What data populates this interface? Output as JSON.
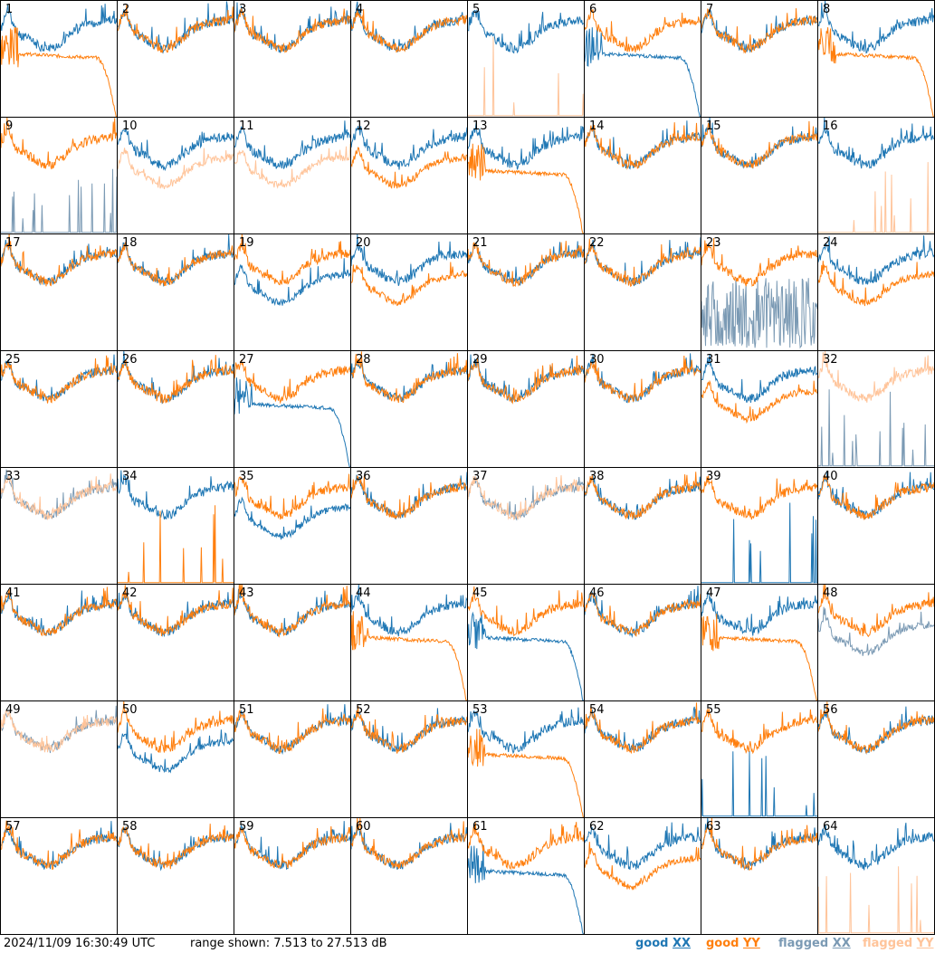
{
  "chart_data": {
    "type": "line",
    "layout": "8x8 grid of small-multiple panels",
    "colors": {
      "good_xx": "#1f77b4",
      "good_yy": "#ff7f0e",
      "flagged_xx": "#7b9ab4",
      "flagged_yy": "#ffc49a"
    },
    "panels": [
      {
        "label": "1",
        "xx": {
          "status": "good",
          "shape": "normal"
        },
        "yy": {
          "status": "good",
          "shape": "dropoff"
        }
      },
      {
        "label": "2",
        "xx": {
          "status": "good",
          "shape": "normal"
        },
        "yy": {
          "status": "good",
          "shape": "normal"
        }
      },
      {
        "label": "3",
        "xx": {
          "status": "good",
          "shape": "normal"
        },
        "yy": {
          "status": "good",
          "shape": "normal"
        }
      },
      {
        "label": "4",
        "xx": {
          "status": "good",
          "shape": "normal"
        },
        "yy": {
          "status": "good",
          "shape": "normal"
        }
      },
      {
        "label": "5",
        "xx": {
          "status": "good",
          "shape": "normal"
        },
        "yy": {
          "status": "flagged",
          "shape": "spikes"
        }
      },
      {
        "label": "6",
        "xx": {
          "status": "good",
          "shape": "dropoff"
        },
        "yy": {
          "status": "good",
          "shape": "normal"
        }
      },
      {
        "label": "7",
        "xx": {
          "status": "good",
          "shape": "normal"
        },
        "yy": {
          "status": "good",
          "shape": "normal"
        }
      },
      {
        "label": "8",
        "xx": {
          "status": "good",
          "shape": "normal"
        },
        "yy": {
          "status": "good",
          "shape": "dropoff"
        }
      },
      {
        "label": "9",
        "xx": {
          "status": "flagged",
          "shape": "spikes"
        },
        "yy": {
          "status": "good",
          "shape": "normal"
        }
      },
      {
        "label": "10",
        "xx": {
          "status": "good",
          "shape": "normal"
        },
        "yy": {
          "status": "flagged",
          "shape": "low"
        }
      },
      {
        "label": "11",
        "xx": {
          "status": "good",
          "shape": "normal"
        },
        "yy": {
          "status": "flagged",
          "shape": "low"
        }
      },
      {
        "label": "12",
        "xx": {
          "status": "good",
          "shape": "normal"
        },
        "yy": {
          "status": "good",
          "shape": "low"
        }
      },
      {
        "label": "13",
        "xx": {
          "status": "good",
          "shape": "normal"
        },
        "yy": {
          "status": "good",
          "shape": "dropoff"
        }
      },
      {
        "label": "14",
        "xx": {
          "status": "good",
          "shape": "normal"
        },
        "yy": {
          "status": "good",
          "shape": "normal"
        }
      },
      {
        "label": "15",
        "xx": {
          "status": "good",
          "shape": "normal"
        },
        "yy": {
          "status": "good",
          "shape": "normal"
        }
      },
      {
        "label": "16",
        "xx": {
          "status": "good",
          "shape": "normal"
        },
        "yy": {
          "status": "flagged",
          "shape": "spikes"
        }
      },
      {
        "label": "17",
        "xx": {
          "status": "good",
          "shape": "normal"
        },
        "yy": {
          "status": "good",
          "shape": "normal"
        }
      },
      {
        "label": "18",
        "xx": {
          "status": "good",
          "shape": "normal"
        },
        "yy": {
          "status": "good",
          "shape": "normal"
        }
      },
      {
        "label": "19",
        "xx": {
          "status": "good",
          "shape": "low"
        },
        "yy": {
          "status": "good",
          "shape": "normal"
        }
      },
      {
        "label": "20",
        "xx": {
          "status": "good",
          "shape": "normal"
        },
        "yy": {
          "status": "good",
          "shape": "low"
        }
      },
      {
        "label": "21",
        "xx": {
          "status": "good",
          "shape": "normal"
        },
        "yy": {
          "status": "good",
          "shape": "normal"
        }
      },
      {
        "label": "22",
        "xx": {
          "status": "good",
          "shape": "normal"
        },
        "yy": {
          "status": "good",
          "shape": "normal"
        }
      },
      {
        "label": "23",
        "xx": {
          "status": "flagged",
          "shape": "noisy"
        },
        "yy": {
          "status": "good",
          "shape": "normal"
        }
      },
      {
        "label": "24",
        "xx": {
          "status": "good",
          "shape": "normal"
        },
        "yy": {
          "status": "good",
          "shape": "low"
        }
      },
      {
        "label": "25",
        "xx": {
          "status": "good",
          "shape": "normal"
        },
        "yy": {
          "status": "good",
          "shape": "normal"
        }
      },
      {
        "label": "26",
        "xx": {
          "status": "good",
          "shape": "normal"
        },
        "yy": {
          "status": "good",
          "shape": "normal"
        }
      },
      {
        "label": "27",
        "xx": {
          "status": "good",
          "shape": "dropoff"
        },
        "yy": {
          "status": "good",
          "shape": "normal"
        }
      },
      {
        "label": "28",
        "xx": {
          "status": "good",
          "shape": "normal"
        },
        "yy": {
          "status": "good",
          "shape": "normal"
        }
      },
      {
        "label": "29",
        "xx": {
          "status": "good",
          "shape": "normal"
        },
        "yy": {
          "status": "good",
          "shape": "normal"
        }
      },
      {
        "label": "30",
        "xx": {
          "status": "good",
          "shape": "normal"
        },
        "yy": {
          "status": "good",
          "shape": "normal"
        }
      },
      {
        "label": "31",
        "xx": {
          "status": "good",
          "shape": "normal"
        },
        "yy": {
          "status": "good",
          "shape": "low"
        }
      },
      {
        "label": "32",
        "xx": {
          "status": "flagged",
          "shape": "spikes"
        },
        "yy": {
          "status": "flagged",
          "shape": "normal"
        }
      },
      {
        "label": "33",
        "xx": {
          "status": "flagged",
          "shape": "normal"
        },
        "yy": {
          "status": "flagged",
          "shape": "normal"
        }
      },
      {
        "label": "34",
        "xx": {
          "status": "good",
          "shape": "normal"
        },
        "yy": {
          "status": "good",
          "shape": "spikes"
        }
      },
      {
        "label": "35",
        "xx": {
          "status": "good",
          "shape": "low"
        },
        "yy": {
          "status": "good",
          "shape": "normal"
        }
      },
      {
        "label": "36",
        "xx": {
          "status": "good",
          "shape": "normal"
        },
        "yy": {
          "status": "good",
          "shape": "normal"
        }
      },
      {
        "label": "37",
        "xx": {
          "status": "flagged",
          "shape": "normal"
        },
        "yy": {
          "status": "flagged",
          "shape": "normal"
        }
      },
      {
        "label": "38",
        "xx": {
          "status": "good",
          "shape": "normal"
        },
        "yy": {
          "status": "good",
          "shape": "normal"
        }
      },
      {
        "label": "39",
        "xx": {
          "status": "good",
          "shape": "spikes"
        },
        "yy": {
          "status": "good",
          "shape": "normal"
        }
      },
      {
        "label": "40",
        "xx": {
          "status": "good",
          "shape": "normal"
        },
        "yy": {
          "status": "good",
          "shape": "normal"
        }
      },
      {
        "label": "41",
        "xx": {
          "status": "good",
          "shape": "normal"
        },
        "yy": {
          "status": "good",
          "shape": "normal"
        }
      },
      {
        "label": "42",
        "xx": {
          "status": "good",
          "shape": "normal"
        },
        "yy": {
          "status": "good",
          "shape": "normal"
        }
      },
      {
        "label": "43",
        "xx": {
          "status": "good",
          "shape": "normal"
        },
        "yy": {
          "status": "good",
          "shape": "normal"
        }
      },
      {
        "label": "44",
        "xx": {
          "status": "good",
          "shape": "normal"
        },
        "yy": {
          "status": "good",
          "shape": "dropoff"
        }
      },
      {
        "label": "45",
        "xx": {
          "status": "good",
          "shape": "dropoff"
        },
        "yy": {
          "status": "good",
          "shape": "normal"
        }
      },
      {
        "label": "46",
        "xx": {
          "status": "good",
          "shape": "normal"
        },
        "yy": {
          "status": "good",
          "shape": "normal"
        }
      },
      {
        "label": "47",
        "xx": {
          "status": "good",
          "shape": "normal"
        },
        "yy": {
          "status": "good",
          "shape": "dropoff"
        }
      },
      {
        "label": "48",
        "xx": {
          "status": "flagged",
          "shape": "low"
        },
        "yy": {
          "status": "good",
          "shape": "normal"
        }
      },
      {
        "label": "49",
        "xx": {
          "status": "flagged",
          "shape": "normal"
        },
        "yy": {
          "status": "flagged",
          "shape": "normal"
        }
      },
      {
        "label": "50",
        "xx": {
          "status": "good",
          "shape": "low"
        },
        "yy": {
          "status": "good",
          "shape": "normal"
        }
      },
      {
        "label": "51",
        "xx": {
          "status": "good",
          "shape": "normal"
        },
        "yy": {
          "status": "good",
          "shape": "normal"
        }
      },
      {
        "label": "52",
        "xx": {
          "status": "good",
          "shape": "normal"
        },
        "yy": {
          "status": "good",
          "shape": "normal"
        }
      },
      {
        "label": "53",
        "xx": {
          "status": "good",
          "shape": "normal"
        },
        "yy": {
          "status": "good",
          "shape": "dropoff"
        }
      },
      {
        "label": "54",
        "xx": {
          "status": "good",
          "shape": "normal"
        },
        "yy": {
          "status": "good",
          "shape": "normal"
        }
      },
      {
        "label": "55",
        "xx": {
          "status": "good",
          "shape": "spikes"
        },
        "yy": {
          "status": "good",
          "shape": "normal"
        }
      },
      {
        "label": "56",
        "xx": {
          "status": "good",
          "shape": "normal"
        },
        "yy": {
          "status": "good",
          "shape": "normal"
        }
      },
      {
        "label": "57",
        "xx": {
          "status": "good",
          "shape": "normal"
        },
        "yy": {
          "status": "good",
          "shape": "normal"
        }
      },
      {
        "label": "58",
        "xx": {
          "status": "good",
          "shape": "normal"
        },
        "yy": {
          "status": "good",
          "shape": "normal"
        }
      },
      {
        "label": "59",
        "xx": {
          "status": "good",
          "shape": "normal"
        },
        "yy": {
          "status": "good",
          "shape": "normal"
        }
      },
      {
        "label": "60",
        "xx": {
          "status": "good",
          "shape": "normal"
        },
        "yy": {
          "status": "good",
          "shape": "normal"
        }
      },
      {
        "label": "61",
        "xx": {
          "status": "good",
          "shape": "dropoff"
        },
        "yy": {
          "status": "good",
          "shape": "normal"
        }
      },
      {
        "label": "62",
        "xx": {
          "status": "good",
          "shape": "normal"
        },
        "yy": {
          "status": "good",
          "shape": "low"
        }
      },
      {
        "label": "63",
        "xx": {
          "status": "good",
          "shape": "normal"
        },
        "yy": {
          "status": "good",
          "shape": "normal"
        }
      },
      {
        "label": "64",
        "xx": {
          "status": "good",
          "shape": "normal"
        },
        "yy": {
          "status": "flagged",
          "shape": "spikes"
        }
      }
    ]
  },
  "footer": {
    "timestamp": "2024/11/09 16:30:49 UTC",
    "range": "range shown: 7.513 to 27.513 dB",
    "legend": {
      "good_prefix": "good",
      "flagged_prefix": "flagged",
      "xx": "XX",
      "yy": "YY"
    }
  }
}
